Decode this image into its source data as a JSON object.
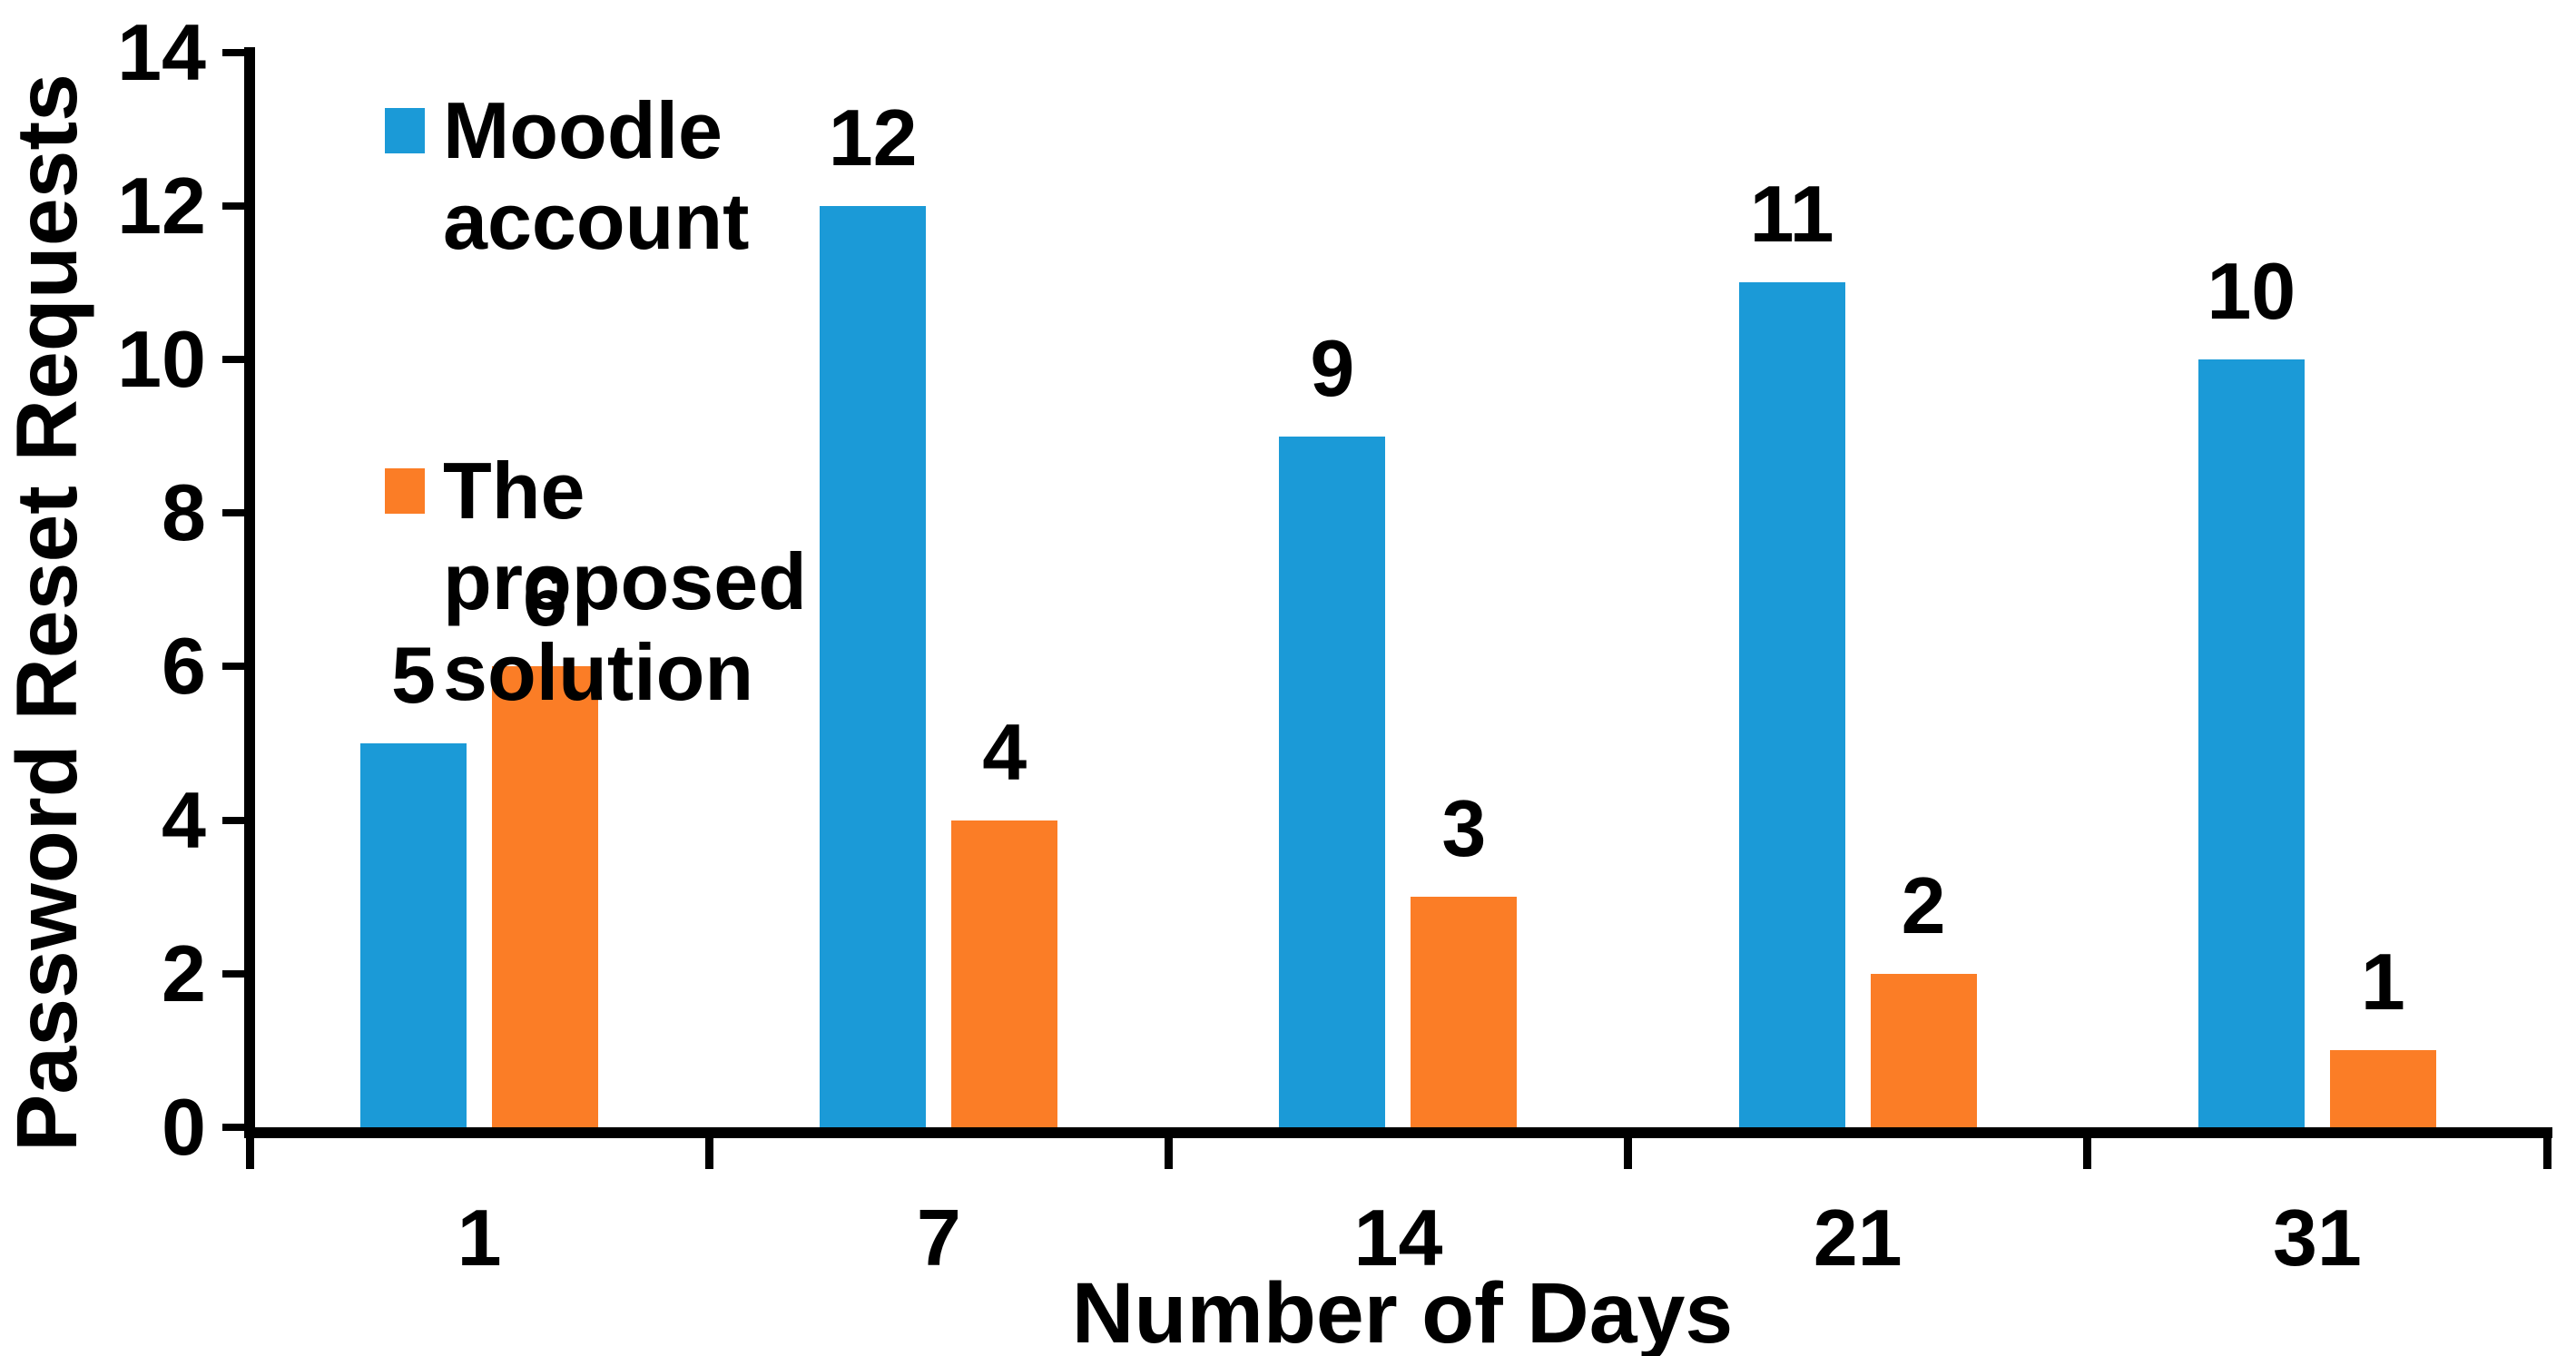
{
  "chart_data": {
    "type": "bar",
    "title": "",
    "categories": [
      "1",
      "7",
      "14",
      "21",
      "31"
    ],
    "series": [
      {
        "name": "Moodle account",
        "color": "#1B9AD7",
        "values": [
          5,
          12,
          9,
          11,
          10
        ]
      },
      {
        "name": "The proposed solution",
        "color": "#FB7D26",
        "values": [
          6,
          4,
          3,
          2,
          1
        ]
      }
    ],
    "xlabel": "Number of Days",
    "ylabel": "Password Reset Requests",
    "ylim": [
      0,
      14
    ],
    "yticks": [
      0,
      2,
      4,
      6,
      8,
      10,
      12,
      14
    ],
    "grid": false,
    "legend_position": "upper-left-inside",
    "data_labels": true,
    "colors": {
      "axis": "#000000",
      "text": "#000000",
      "background": "#FFFFFF"
    }
  }
}
